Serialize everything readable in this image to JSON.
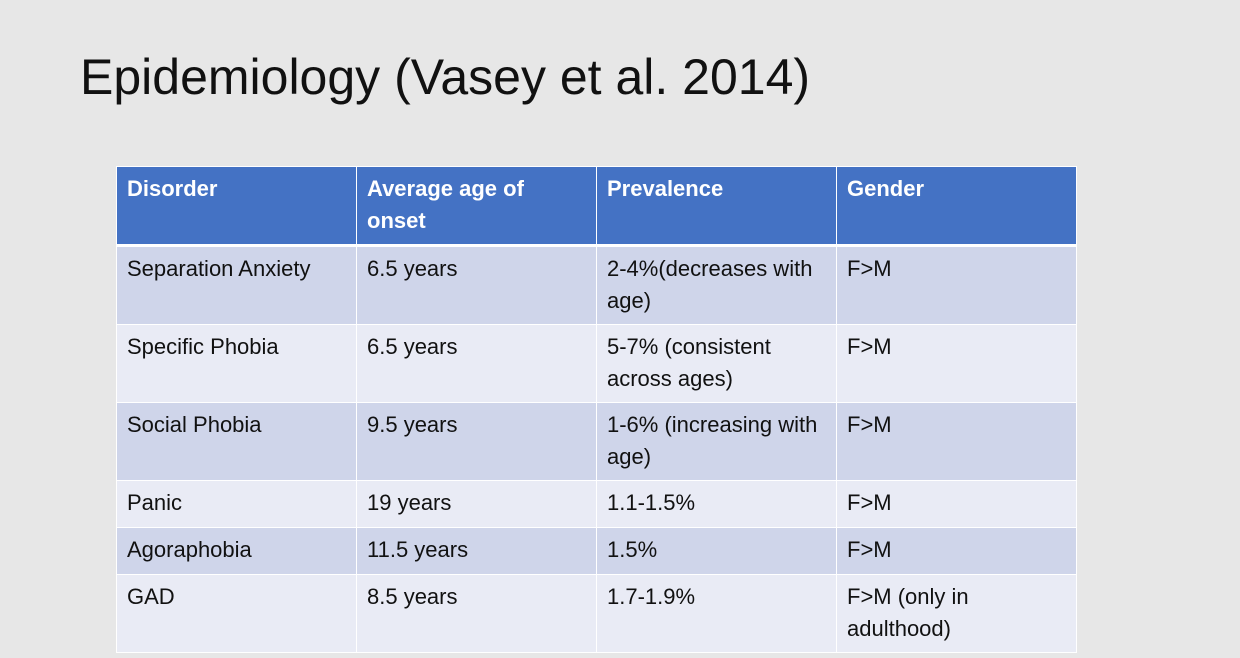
{
  "slide": {
    "title": "Epidemiology (Vasey et al. 2014)"
  },
  "table": {
    "headers": [
      "Disorder",
      "Average age of onset",
      "Prevalence",
      "Gender"
    ],
    "rows": [
      {
        "disorder": "Separation Anxiety",
        "onset": "6.5 years",
        "prevalence": "2-4%(decreases with age)",
        "gender": "F>M"
      },
      {
        "disorder": "Specific Phobia",
        "onset": "6.5 years",
        "prevalence": "5-7% (consistent across ages)",
        "gender": "F>M"
      },
      {
        "disorder": "Social Phobia",
        "onset": "9.5 years",
        "prevalence": "1-6% (increasing with age)",
        "gender": "F>M"
      },
      {
        "disorder": "Panic",
        "onset": "19 years",
        "prevalence": "1.1-1.5%",
        "gender": "F>M"
      },
      {
        "disorder": "Agoraphobia",
        "onset": "11.5 years",
        "prevalence": "1.5%",
        "gender": "F>M"
      },
      {
        "disorder": "GAD",
        "onset": "8.5 years",
        "prevalence": "1.7-1.9%",
        "gender": "F>M (only in adulthood)"
      }
    ]
  },
  "colors": {
    "background": "#e7e7e7",
    "header_fill": "#4472c4",
    "row_band_dark": "#cfd5ea",
    "row_band_light": "#e9ebf5"
  }
}
